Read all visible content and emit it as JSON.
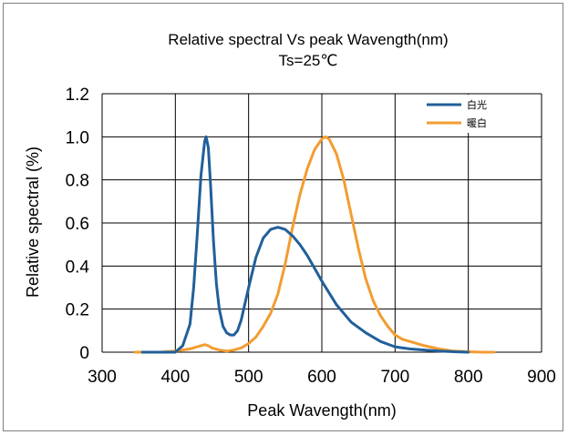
{
  "chart_data": {
    "type": "line",
    "title": "Relative spectral Vs peak Wavength(nm)",
    "subtitle": "Ts=25℃",
    "xlabel": "Peak Wavength(nm)",
    "ylabel": "Relative spectral (%)",
    "xlim": [
      300,
      900
    ],
    "ylim": [
      0,
      1.2
    ],
    "xticks": [
      "300",
      "400",
      "500",
      "600",
      "700",
      "800",
      "900"
    ],
    "yticks": [
      "0",
      "0.2",
      "0.4",
      "0.6",
      "0.8",
      "1.0",
      "1.2"
    ],
    "grid": true,
    "legend": "top-right",
    "series": [
      {
        "name": "白光",
        "color": "#215f99",
        "x": [
          355,
          380,
          400,
          410,
          420,
          425,
          430,
          435,
          440,
          442,
          445,
          448,
          452,
          456,
          460,
          465,
          470,
          475,
          480,
          485,
          490,
          500,
          510,
          520,
          530,
          540,
          550,
          560,
          570,
          580,
          590,
          600,
          620,
          640,
          660,
          680,
          700,
          720,
          740,
          760,
          780,
          800
        ],
        "y": [
          0.0,
          0.0,
          0.0,
          0.03,
          0.13,
          0.3,
          0.55,
          0.82,
          0.98,
          1.0,
          0.95,
          0.78,
          0.52,
          0.32,
          0.2,
          0.12,
          0.09,
          0.08,
          0.08,
          0.1,
          0.15,
          0.3,
          0.44,
          0.53,
          0.57,
          0.58,
          0.57,
          0.54,
          0.5,
          0.45,
          0.39,
          0.33,
          0.22,
          0.14,
          0.09,
          0.05,
          0.025,
          0.015,
          0.01,
          0.005,
          0.002,
          0.0
        ]
      },
      {
        "name": "暖白",
        "color": "#f39c32",
        "x": [
          345,
          360,
          380,
          400,
          420,
          430,
          440,
          445,
          450,
          460,
          470,
          480,
          490,
          500,
          510,
          520,
          530,
          540,
          550,
          560,
          570,
          580,
          590,
          600,
          605,
          610,
          620,
          630,
          640,
          650,
          660,
          670,
          680,
          690,
          700,
          710,
          720,
          740,
          760,
          780,
          800,
          820,
          835
        ],
        "y": [
          0.0,
          0.0,
          0.0,
          0.005,
          0.015,
          0.025,
          0.035,
          0.03,
          0.02,
          0.01,
          0.005,
          0.01,
          0.02,
          0.04,
          0.07,
          0.12,
          0.18,
          0.27,
          0.41,
          0.58,
          0.73,
          0.85,
          0.94,
          0.99,
          1.0,
          0.99,
          0.92,
          0.8,
          0.64,
          0.48,
          0.34,
          0.24,
          0.17,
          0.12,
          0.08,
          0.06,
          0.05,
          0.03,
          0.015,
          0.005,
          0.002,
          0.0,
          0.0
        ]
      }
    ]
  }
}
